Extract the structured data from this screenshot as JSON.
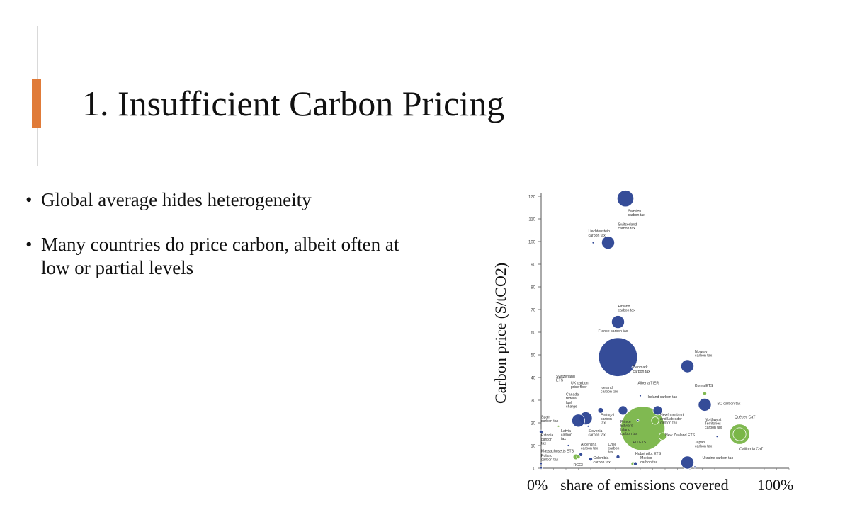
{
  "slide": {
    "title": "1. Insufficient Carbon Pricing",
    "accent_color": "#e07b39",
    "bullets": [
      "Global average hides heterogeneity",
      "Many countries do price carbon, albeit often at low or partial levels"
    ]
  },
  "chart_data": {
    "type": "scatter",
    "ylabel": "Carbon price ($/tCO2)",
    "xlabel_left": "0%",
    "xlabel_center": "share of emissions covered",
    "xlabel_right": "100%",
    "ylim": [
      0,
      120
    ],
    "yticks": [
      0,
      10,
      20,
      30,
      40,
      50,
      60,
      70,
      80,
      90,
      100,
      110,
      120
    ],
    "grid": false,
    "colors": {
      "carbon_tax": "#2b4393",
      "ets": "#7ab648"
    },
    "points": [
      {
        "name": "Sweden carbon tax",
        "x": 0.34,
        "y": 119,
        "size": 9,
        "kind": "tax"
      },
      {
        "name": "Switzerland carbon tax",
        "x": 0.27,
        "y": 99.5,
        "size": 7,
        "kind": "tax"
      },
      {
        "name": "Liechtenstein carbon tax",
        "x": 0.21,
        "y": 99.5,
        "size": 1,
        "kind": "tax"
      },
      {
        "name": "Finland carbon tax",
        "x": 0.31,
        "y": 64.5,
        "size": 7,
        "kind": "tax"
      },
      {
        "name": "France carbon tax",
        "x": 0.31,
        "y": 49,
        "size": 21,
        "kind": "tax"
      },
      {
        "name": "Norway carbon tax",
        "x": 0.59,
        "y": 45,
        "size": 7,
        "kind": "tax"
      },
      {
        "name": "Denmark carbon tax",
        "x": 0.37,
        "y": 44.5,
        "size": 1,
        "kind": "tax"
      },
      {
        "name": "Korea ETS",
        "x": 0.66,
        "y": 33,
        "size": 2,
        "kind": "ets"
      },
      {
        "name": "Alberta TIER",
        "x": 0.4,
        "y": 32,
        "size": 1,
        "kind": "tax"
      },
      {
        "name": "Ireland carbon tax",
        "x": 0.47,
        "y": 25.5,
        "size": 5,
        "kind": "tax"
      },
      {
        "name": "BC carbon tax",
        "x": 0.66,
        "y": 28,
        "size": 7,
        "kind": "tax"
      },
      {
        "name": "Switzerland ETS",
        "x": 0.07,
        "y": 18.5,
        "size": 1,
        "kind": "ets"
      },
      {
        "name": "UK carbon price floor",
        "x": 0.18,
        "y": 22,
        "size": 7,
        "kind": "tax"
      },
      {
        "name": "Canada federal fuel charge",
        "x": 0.15,
        "y": 21,
        "size": 7,
        "kind": "tax"
      },
      {
        "name": "Iceland carbon tax",
        "x": 0.24,
        "y": 25.5,
        "size": 3,
        "kind": "tax"
      },
      {
        "name": "Portugal carbon tax",
        "x": 0.33,
        "y": 25.5,
        "size": 5,
        "kind": "tax"
      },
      {
        "name": "Prince Edward Island carbon tax",
        "x": 0.39,
        "y": 21,
        "size": 1,
        "kind": "tax"
      },
      {
        "name": "EU ETS",
        "x": 0.41,
        "y": 17.5,
        "size": 24,
        "kind": "ets"
      },
      {
        "name": "Newfoundland and Labrador carbon tax",
        "x": 0.46,
        "y": 21,
        "size": 4,
        "kind": "ets"
      },
      {
        "name": "New Zealand ETS",
        "x": 0.49,
        "y": 14,
        "size": 4,
        "kind": "ets"
      },
      {
        "name": "Northwest Territories carbon tax",
        "x": 0.71,
        "y": 14,
        "size": 1,
        "kind": "tax"
      },
      {
        "name": "Quebec CaT",
        "x": 0.8,
        "y": 15,
        "size": 11,
        "kind": "ets"
      },
      {
        "name": "California CaT",
        "x": 0.8,
        "y": 15,
        "size": 7,
        "kind": "ets"
      },
      {
        "name": "Spain carbon tax",
        "x": 0.0,
        "y": 16,
        "size": 2,
        "kind": "tax"
      },
      {
        "name": "Estonia carbon tax",
        "x": 0.0,
        "y": 2,
        "size": 1,
        "kind": "tax"
      },
      {
        "name": "Latvia carbon tax",
        "x": 0.11,
        "y": 10,
        "size": 1,
        "kind": "tax"
      },
      {
        "name": "Slovenia carbon tax",
        "x": 0.19,
        "y": 18.5,
        "size": 1,
        "kind": "tax"
      },
      {
        "name": "Massachusetts ETS",
        "x": 0.14,
        "y": 5,
        "size": 3,
        "kind": "ets"
      },
      {
        "name": "RGGI",
        "x": 0.15,
        "y": 5,
        "size": 2,
        "kind": "ets"
      },
      {
        "name": "Argentina carbon tax",
        "x": 0.16,
        "y": 6,
        "size": 2,
        "kind": "tax"
      },
      {
        "name": "Colombia carbon tax",
        "x": 0.2,
        "y": 4,
        "size": 2,
        "kind": "tax"
      },
      {
        "name": "Chile carbon tax",
        "x": 0.31,
        "y": 5,
        "size": 2,
        "kind": "tax"
      },
      {
        "name": "Poland carbon tax",
        "x": 0.0,
        "y": 0.1,
        "size": 1,
        "kind": "tax"
      },
      {
        "name": "Japan carbon tax",
        "x": 0.59,
        "y": 2.5,
        "size": 7,
        "kind": "tax"
      },
      {
        "name": "Ukraine carbon tax",
        "x": 0.62,
        "y": 0.5,
        "size": 1,
        "kind": "tax"
      },
      {
        "name": "Hubei pilot ETS",
        "x": 0.37,
        "y": 2,
        "size": 2,
        "kind": "ets"
      },
      {
        "name": "Mexico carbon tax",
        "x": 0.38,
        "y": 2,
        "size": 2,
        "kind": "tax"
      }
    ],
    "annotations": [
      {
        "lines": [
          "Sweden",
          "carbon tax"
        ],
        "x": 0.35,
        "y": 113
      },
      {
        "lines": [
          "Switzerland",
          "carbon tax"
        ],
        "x": 0.31,
        "y": 107
      },
      {
        "lines": [
          "Liechtenstein",
          "carbon tax"
        ],
        "x": 0.19,
        "y": 104
      },
      {
        "lines": [
          "Finland",
          "carbon tax"
        ],
        "x": 0.31,
        "y": 71
      },
      {
        "lines": [
          "France carbon tax"
        ],
        "x": 0.23,
        "y": 60
      },
      {
        "lines": [
          "Norway",
          "carbon tax"
        ],
        "x": 0.62,
        "y": 51
      },
      {
        "lines": [
          "Denmark",
          "carbon tax"
        ],
        "x": 0.37,
        "y": 44
      },
      {
        "lines": [
          "Alberta TIER"
        ],
        "x": 0.39,
        "y": 37
      },
      {
        "lines": [
          "Korea ETS"
        ],
        "x": 0.62,
        "y": 36
      },
      {
        "lines": [
          "Ireland carbon tax"
        ],
        "x": 0.43,
        "y": 31
      },
      {
        "lines": [
          "BC carbon tax"
        ],
        "x": 0.71,
        "y": 28
      },
      {
        "lines": [
          "Switzerland",
          "ETS"
        ],
        "x": 0.06,
        "y": 40
      },
      {
        "lines": [
          "UK carbon",
          "price floor"
        ],
        "x": 0.12,
        "y": 37
      },
      {
        "lines": [
          "Canada",
          "federal",
          "fuel",
          "charge"
        ],
        "x": 0.1,
        "y": 32
      },
      {
        "lines": [
          "Iceland",
          "carbon tax"
        ],
        "x": 0.24,
        "y": 35
      },
      {
        "lines": [
          "Spain",
          "carbon tax"
        ],
        "x": 0.0,
        "y": 22
      },
      {
        "lines": [
          "Portugal",
          "carbon",
          "tax"
        ],
        "x": 0.24,
        "y": 23
      },
      {
        "lines": [
          "Prince",
          "Edward",
          "Island",
          "carbon tax"
        ],
        "x": 0.32,
        "y": 20
      },
      {
        "lines": [
          "Newfoundland",
          "and Labrador",
          "carbon tax"
        ],
        "x": 0.48,
        "y": 23
      },
      {
        "lines": [
          "Northwest",
          "Territories",
          "carbon tax"
        ],
        "x": 0.66,
        "y": 21
      },
      {
        "lines": [
          "Québec CaT"
        ],
        "x": 0.78,
        "y": 22
      },
      {
        "lines": [
          "Latvia",
          "carbon",
          "tax"
        ],
        "x": 0.08,
        "y": 16
      },
      {
        "lines": [
          "Slovenia",
          "carbon tax"
        ],
        "x": 0.19,
        "y": 16
      },
      {
        "lines": [
          "New Zealand ETS"
        ],
        "x": 0.5,
        "y": 14
      },
      {
        "lines": [
          "Estonia",
          "carbon",
          "tax"
        ],
        "x": 0.0,
        "y": 14
      },
      {
        "lines": [
          "EU ETS"
        ],
        "x": 0.37,
        "y": 11
      },
      {
        "lines": [
          "California CaT"
        ],
        "x": 0.8,
        "y": 8
      },
      {
        "lines": [
          "Japan",
          "carbon tax"
        ],
        "x": 0.62,
        "y": 11
      },
      {
        "lines": [
          "Argentina",
          "carbon tax"
        ],
        "x": 0.16,
        "y": 10
      },
      {
        "lines": [
          "Chile",
          "carbon",
          "tax"
        ],
        "x": 0.27,
        "y": 10
      },
      {
        "lines": [
          "Massachusetts ETS"
        ],
        "x": 0.0,
        "y": 7
      },
      {
        "lines": [
          "Hubei pilot ETS"
        ],
        "x": 0.38,
        "y": 6
      },
      {
        "lines": [
          "Colombia",
          "carbon tax"
        ],
        "x": 0.21,
        "y": 4
      },
      {
        "lines": [
          "Poland",
          "carbon tax"
        ],
        "x": 0.0,
        "y": 5
      },
      {
        "lines": [
          "Mexico",
          "carbon tax"
        ],
        "x": 0.4,
        "y": 4
      },
      {
        "lines": [
          "Ukraine carbon tax"
        ],
        "x": 0.65,
        "y": 4
      },
      {
        "lines": [
          "RGGI"
        ],
        "x": 0.13,
        "y": 1
      }
    ]
  }
}
